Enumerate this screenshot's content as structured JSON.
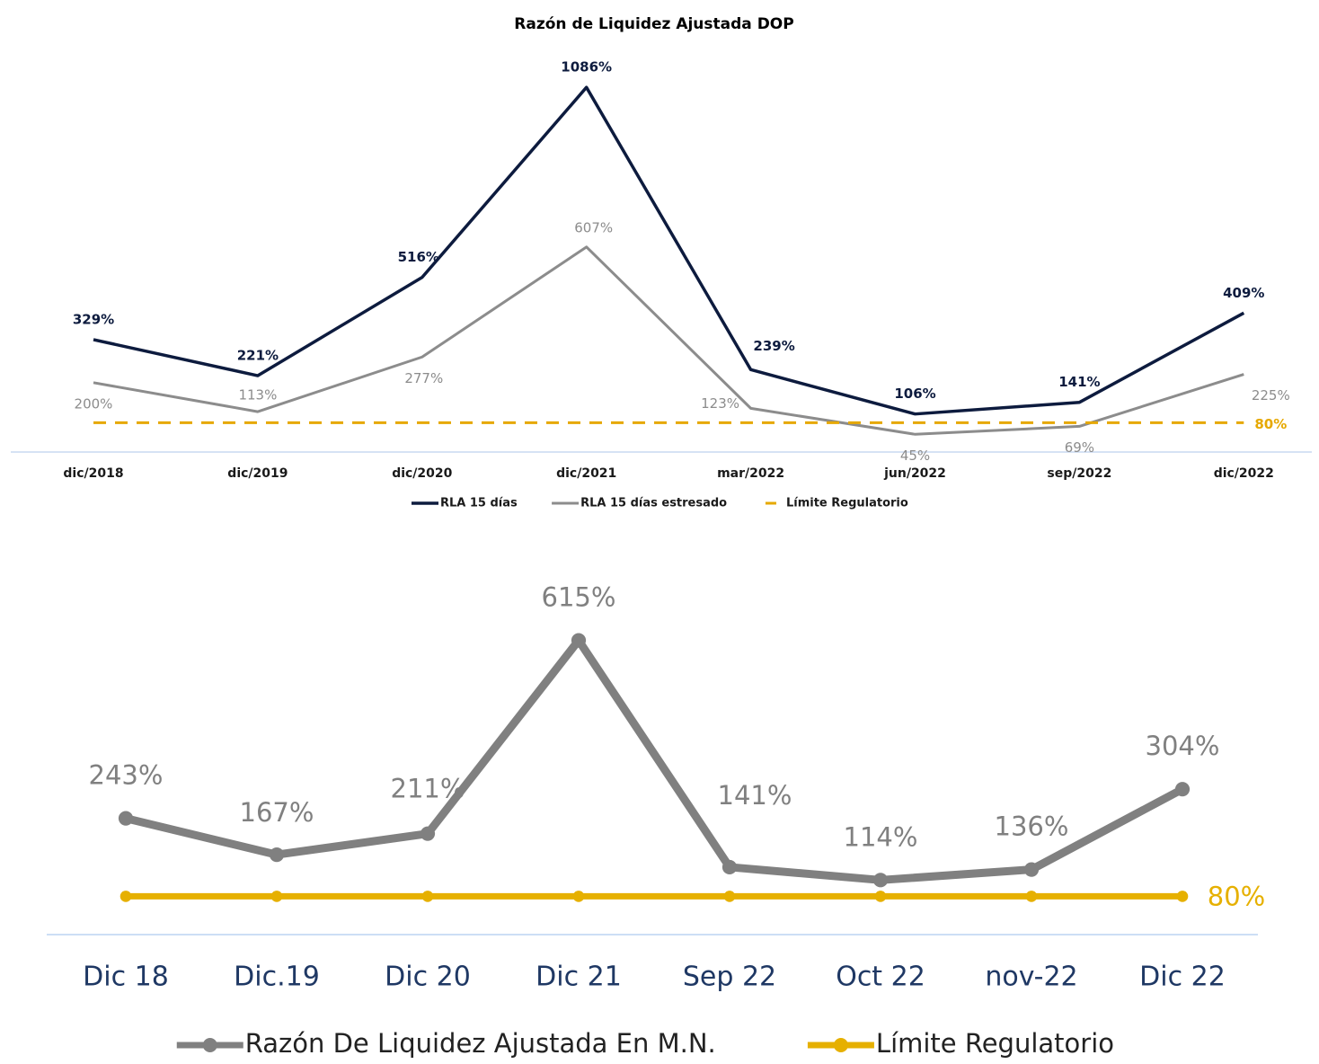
{
  "chart_data": [
    {
      "type": "line",
      "title": "Razón de Liquidez Ajustada DOP",
      "categories": [
        "dic/2018",
        "dic/2019",
        "dic/2020",
        "dic/2021",
        "mar/2022",
        "jun/2022",
        "sep/2022",
        "dic/2022"
      ],
      "series": [
        {
          "name": "RLA 15 días",
          "color": "#0d1b3e",
          "values": [
            329,
            221,
            516,
            1086,
            239,
            106,
            141,
            409
          ],
          "value_labels": [
            "329%",
            "221%",
            "516%",
            "1086%",
            "239%",
            "106%",
            "141%",
            "409%"
          ]
        },
        {
          "name": "RLA 15 días estresado",
          "color": "#8c8c8c",
          "values": [
            200,
            113,
            277,
            607,
            123,
            45,
            69,
            225
          ],
          "value_labels": [
            "200%",
            "113%",
            "277%",
            "607%",
            "123%",
            "45%",
            "69%",
            "225%"
          ]
        },
        {
          "name": "Límite Regulatorio",
          "color": "#e6a800",
          "linestyle": "dashed",
          "values": [
            80,
            80,
            80,
            80,
            80,
            80,
            80,
            80
          ],
          "value_labels": [
            null,
            null,
            null,
            null,
            null,
            null,
            null,
            "80%"
          ]
        }
      ],
      "ylim": [
        0,
        1100
      ],
      "legend": "bottom"
    },
    {
      "type": "line",
      "categories": [
        "Dic 18",
        "Dic.19",
        "Dic 20",
        "Dic 21",
        "Sep 22",
        "Oct 22",
        "nov-22",
        "Dic 22"
      ],
      "series": [
        {
          "name": "Razón De Liquidez Ajustada En M.N.",
          "color": "#808080",
          "marker": "circle",
          "values": [
            243,
            167,
            211,
            615,
            141,
            114,
            136,
            304
          ],
          "value_labels": [
            "243%",
            "167%",
            "211%",
            "615%",
            "141%",
            "114%",
            "136%",
            "304%"
          ]
        },
        {
          "name": "Límite Regulatorio",
          "color": "#e6b000",
          "marker": "circle",
          "values": [
            80,
            80,
            80,
            80,
            80,
            80,
            80,
            80
          ],
          "value_labels": [
            null,
            null,
            null,
            null,
            null,
            null,
            null,
            "80%"
          ]
        }
      ],
      "ylim": [
        0,
        650
      ],
      "legend": "bottom"
    }
  ]
}
